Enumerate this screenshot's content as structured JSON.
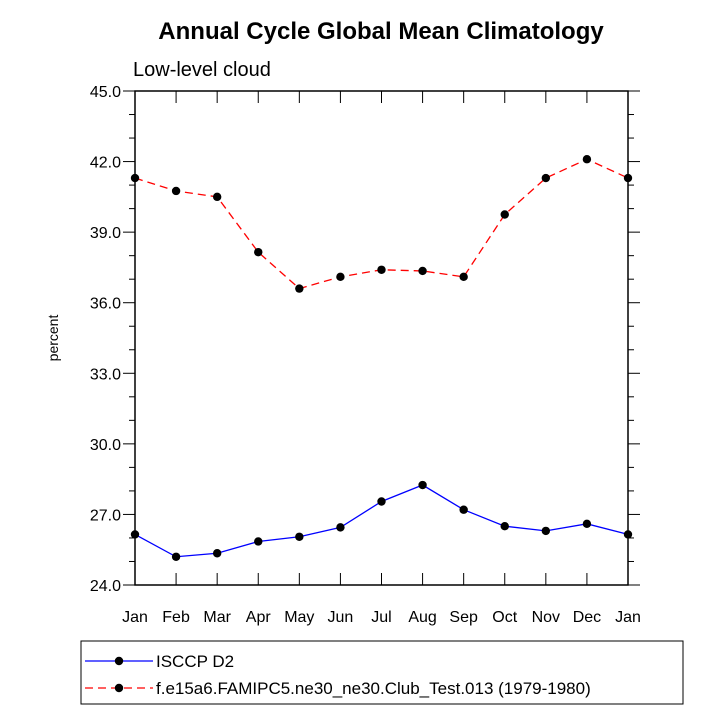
{
  "chart_data": {
    "type": "line",
    "title": "Annual Cycle Global Mean Climatology",
    "subtitle": "Low-level cloud",
    "xlabel": "",
    "ylabel": "percent",
    "categories": [
      "Jan",
      "Feb",
      "Mar",
      "Apr",
      "May",
      "Jun",
      "Jul",
      "Aug",
      "Sep",
      "Oct",
      "Nov",
      "Dec",
      "Jan"
    ],
    "ylim": [
      24.0,
      45.0
    ],
    "yticks": [
      24.0,
      27.0,
      30.0,
      33.0,
      36.0,
      39.0,
      42.0,
      45.0
    ],
    "ytick_labels": [
      "24.0",
      "27.0",
      "30.0",
      "33.0",
      "36.0",
      "39.0",
      "42.0",
      "45.0"
    ],
    "grid": false,
    "legend_position": "bottom",
    "series": [
      {
        "name": "ISCCP D2",
        "color": "#0000ff",
        "line_style": "solid",
        "marker": "filled-circle",
        "values": [
          26.15,
          25.2,
          25.35,
          25.85,
          26.05,
          26.45,
          27.55,
          28.25,
          27.2,
          26.5,
          26.3,
          26.6,
          26.15
        ]
      },
      {
        "name": "f.e15a6.FAMIPC5.ne30_ne30.Club_Test.013 (1979-1980)",
        "color": "#ff0000",
        "line_style": "dashed",
        "marker": "filled-circle",
        "values": [
          41.3,
          40.75,
          40.5,
          38.15,
          36.6,
          37.1,
          37.4,
          37.35,
          37.1,
          39.75,
          41.3,
          42.1,
          41.3
        ]
      }
    ]
  }
}
